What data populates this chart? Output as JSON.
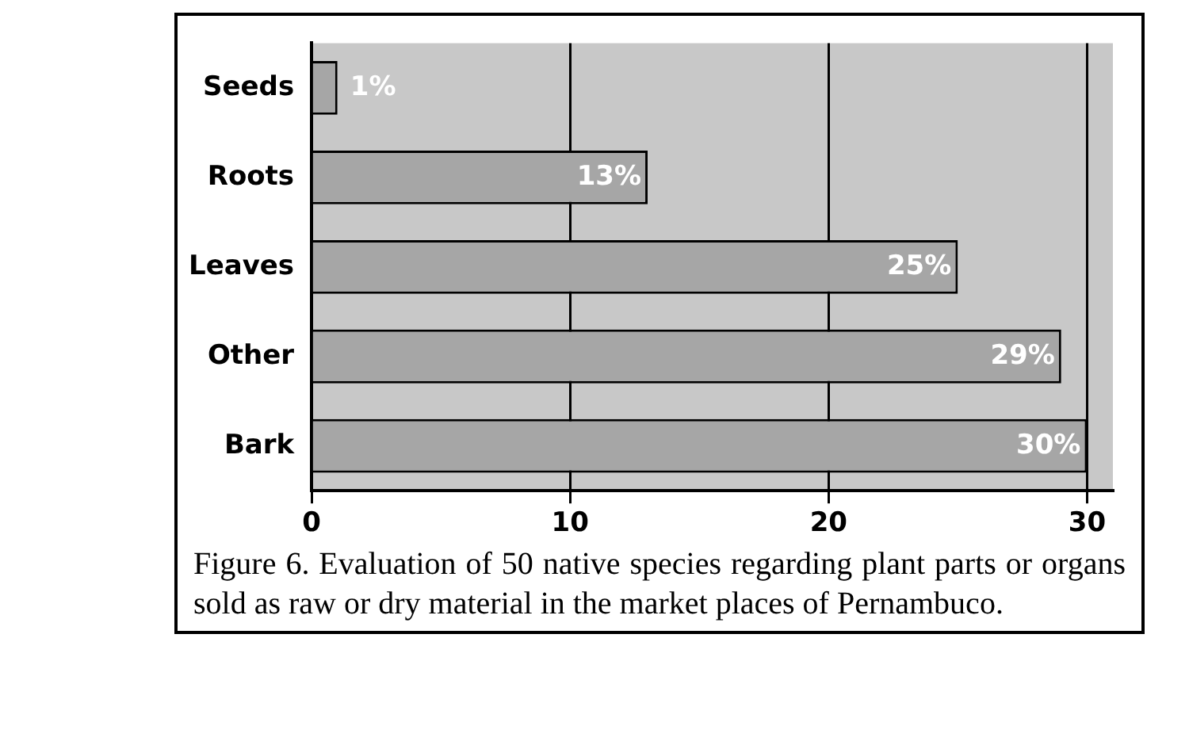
{
  "chart_data": {
    "type": "bar",
    "orientation": "horizontal",
    "categories": [
      "Seeds",
      "Roots",
      "Leaves",
      "Other",
      "Bark"
    ],
    "values": [
      1,
      13,
      25,
      29,
      30
    ],
    "value_labels": [
      "1%",
      "13%",
      "25%",
      "29%",
      "30%"
    ],
    "color": "#a6a6a6",
    "xlim": [
      0,
      31
    ],
    "xticks": [
      0,
      10,
      20,
      30
    ],
    "grid": "x",
    "legend": false,
    "annotations": [
      "Figure 6. Evaluation of 50 native species regarding plant parts or organs sold as raw or dry material in the market places of Pernambuco."
    ]
  }
}
